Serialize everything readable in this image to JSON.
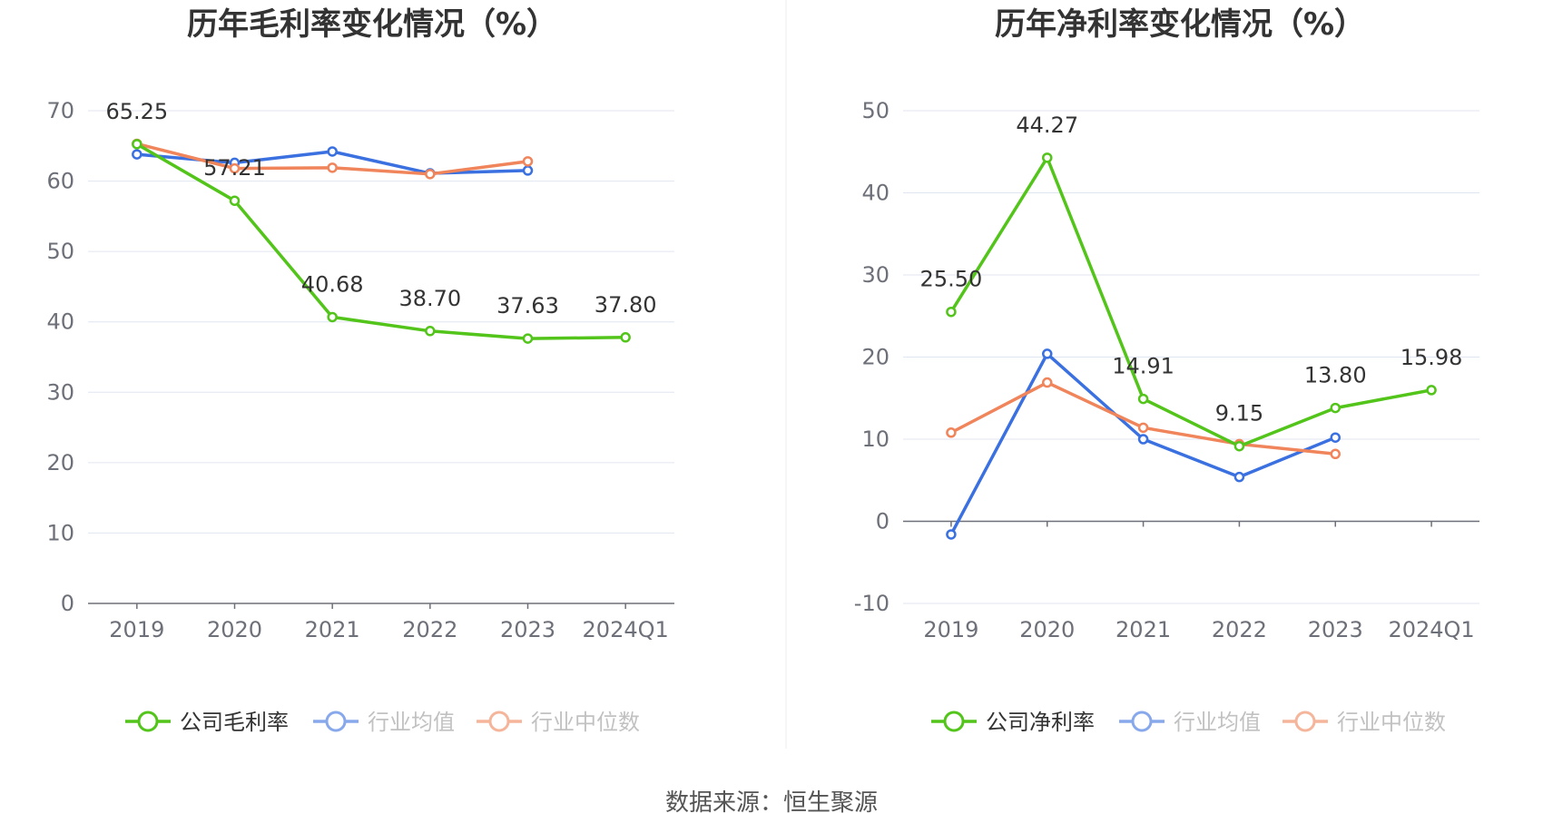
{
  "footer": {
    "source": "数据来源：恒生聚源"
  },
  "chart_data": [
    {
      "type": "line",
      "title": "历年毛利率变化情况（%）",
      "categories": [
        "2019",
        "2020",
        "2021",
        "2022",
        "2023",
        "2024Q1"
      ],
      "ylim": [
        0,
        70
      ],
      "yticks": [
        "0",
        "10",
        "20",
        "30",
        "40",
        "50",
        "60",
        "70"
      ],
      "grid": true,
      "legend_position": "bottom-center",
      "series": [
        {
          "name": "公司毛利率",
          "color": "#52c41a",
          "values": [
            65.25,
            57.21,
            40.68,
            38.7,
            37.63,
            37.8
          ],
          "labels": [
            "65.25",
            "57.21",
            "40.68",
            "38.70",
            "37.63",
            "37.80"
          ]
        },
        {
          "name": "行业均值",
          "color": "#3a70e0",
          "values": [
            63.8,
            62.6,
            64.2,
            61.1,
            61.5,
            null
          ]
        },
        {
          "name": "行业中位数",
          "color": "#f0845a",
          "values": [
            65.3,
            61.8,
            61.9,
            61.0,
            62.8,
            null
          ]
        }
      ]
    },
    {
      "type": "line",
      "title": "历年净利率变化情况（%）",
      "categories": [
        "2019",
        "2020",
        "2021",
        "2022",
        "2023",
        "2024Q1"
      ],
      "ylim": [
        -10,
        50
      ],
      "yticks": [
        "-10",
        "0",
        "10",
        "20",
        "30",
        "40",
        "50"
      ],
      "grid": true,
      "legend_position": "bottom-center",
      "series": [
        {
          "name": "公司净利率",
          "color": "#52c41a",
          "values": [
            25.5,
            44.27,
            14.91,
            9.15,
            13.8,
            15.98
          ],
          "labels": [
            "25.50",
            "44.27",
            "14.91",
            "9.15",
            "13.80",
            "15.98"
          ]
        },
        {
          "name": "行业均值",
          "color": "#3a70e0",
          "values": [
            -1.6,
            20.4,
            10.0,
            5.4,
            10.2,
            null
          ]
        },
        {
          "name": "行业中位数",
          "color": "#f0845a",
          "values": [
            10.8,
            16.9,
            11.4,
            9.4,
            8.2,
            null
          ]
        }
      ]
    }
  ]
}
